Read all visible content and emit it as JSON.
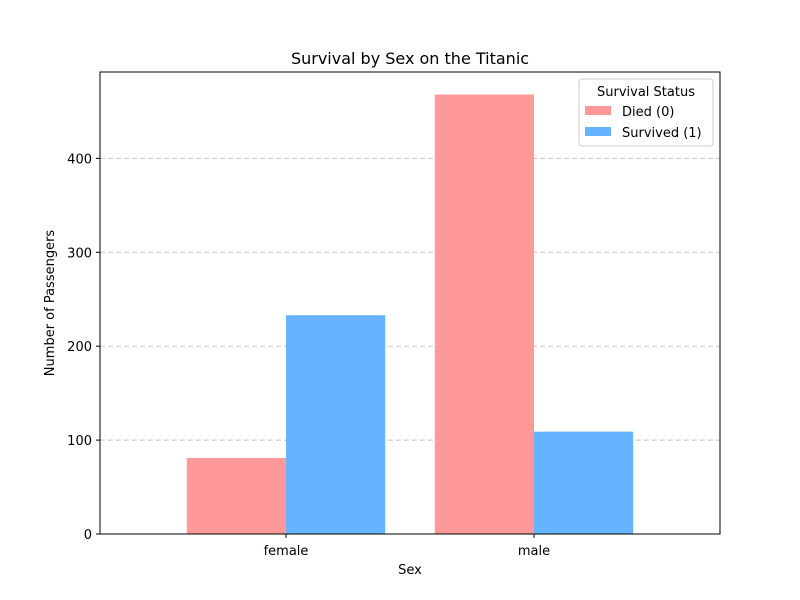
{
  "chart_data": {
    "type": "bar",
    "title": "Survival by Sex on the Titanic",
    "xlabel": "Sex",
    "ylabel": "Number of Passengers",
    "categories": [
      "female",
      "male"
    ],
    "series": [
      {
        "name": "Died (0)",
        "values": [
          81,
          468
        ],
        "color": "#ff9999"
      },
      {
        "name": "Survived (1)",
        "values": [
          233,
          109
        ],
        "color": "#66b3ff"
      }
    ],
    "ylim": [
      0,
      492
    ],
    "yticks": [
      0,
      100,
      200,
      300,
      400
    ],
    "grid": {
      "y": true,
      "style": "dashed",
      "color": "#c8c8c8"
    },
    "legend": {
      "title": "Survival Status",
      "position": "top-right"
    }
  }
}
